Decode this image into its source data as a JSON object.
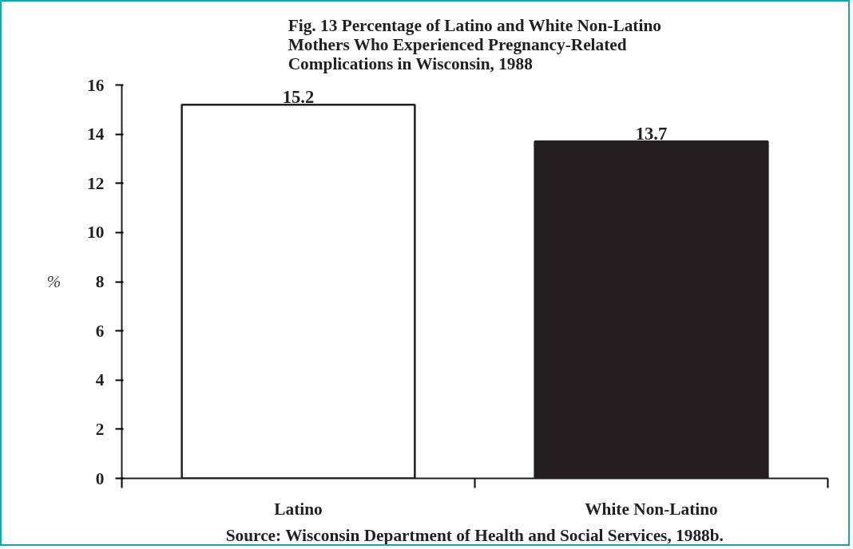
{
  "chart_data": {
    "type": "bar",
    "title": "Fig. 13 Percentage of Latino and White Non-Latino\nMothers Who Experienced Pregnancy-Related\nComplications in Wisconsin, 1988",
    "ylabel": "%",
    "categories": [
      "Latino",
      "White Non-Latino"
    ],
    "values": [
      15.2,
      13.7
    ],
    "colors": [
      "#ffffff",
      "#231f20"
    ],
    "ylim": [
      0,
      16
    ],
    "yticks": [
      0,
      2,
      4,
      6,
      8,
      10,
      12,
      14,
      16
    ],
    "data_labels": true,
    "grid": false,
    "annotations": [
      "Source: Wisconsin Department of Health and Social Services, 1988b."
    ]
  }
}
